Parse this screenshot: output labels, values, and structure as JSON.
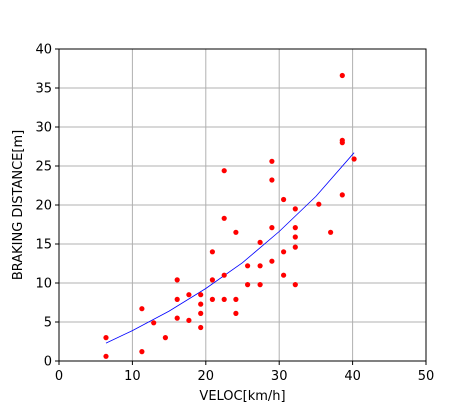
{
  "chart_data": {
    "type": "scatter",
    "title": "",
    "xlabel": "VELOC[km/h]",
    "ylabel": "BRAKING DISTANCE[m]",
    "xlim": [
      0,
      50
    ],
    "ylim": [
      0,
      40
    ],
    "xticks": [
      0,
      10,
      20,
      30,
      40,
      50
    ],
    "yticks": [
      0,
      5,
      10,
      15,
      20,
      25,
      30,
      35,
      40
    ],
    "grid": true,
    "colors": {
      "points": "#ff0000",
      "fit_line": "#0000ff",
      "grid": "#b0b0b0"
    },
    "series": [
      {
        "kind": "points",
        "x": [
          6.4,
          6.4,
          11.3,
          11.3,
          12.9,
          14.5,
          16.1,
          16.1,
          16.1,
          17.7,
          17.7,
          19.3,
          19.3,
          19.3,
          19.3,
          20.9,
          20.9,
          20.9,
          22.5,
          22.5,
          22.5,
          22.5,
          24.1,
          24.1,
          24.1,
          25.7,
          25.7,
          27.4,
          27.4,
          27.4,
          29.0,
          29.0,
          29.0,
          29.0,
          30.6,
          30.6,
          30.6,
          32.2,
          32.2,
          32.2,
          32.2,
          32.2,
          35.4,
          37.0,
          38.6,
          38.6,
          38.6,
          38.6,
          40.2
        ],
        "y": [
          0.6,
          3.0,
          1.2,
          6.7,
          4.9,
          3.0,
          5.5,
          7.9,
          10.4,
          5.2,
          8.5,
          4.3,
          6.1,
          7.3,
          8.5,
          7.9,
          10.4,
          14.0,
          7.9,
          11.0,
          18.3,
          24.4,
          6.1,
          7.9,
          16.5,
          9.8,
          12.2,
          9.8,
          12.2,
          15.2,
          12.8,
          17.1,
          23.2,
          25.6,
          11.0,
          14.0,
          20.7,
          9.8,
          14.6,
          15.9,
          17.1,
          19.5,
          20.1,
          16.5,
          21.3,
          28.0,
          28.3,
          36.6,
          25.9
        ]
      },
      {
        "kind": "fit_line",
        "x": [
          6.4,
          10,
          15,
          20,
          25,
          30,
          35,
          40.2
        ],
        "y": [
          2.3,
          3.9,
          6.4,
          9.3,
          12.6,
          16.6,
          21.1,
          26.7
        ]
      }
    ]
  }
}
